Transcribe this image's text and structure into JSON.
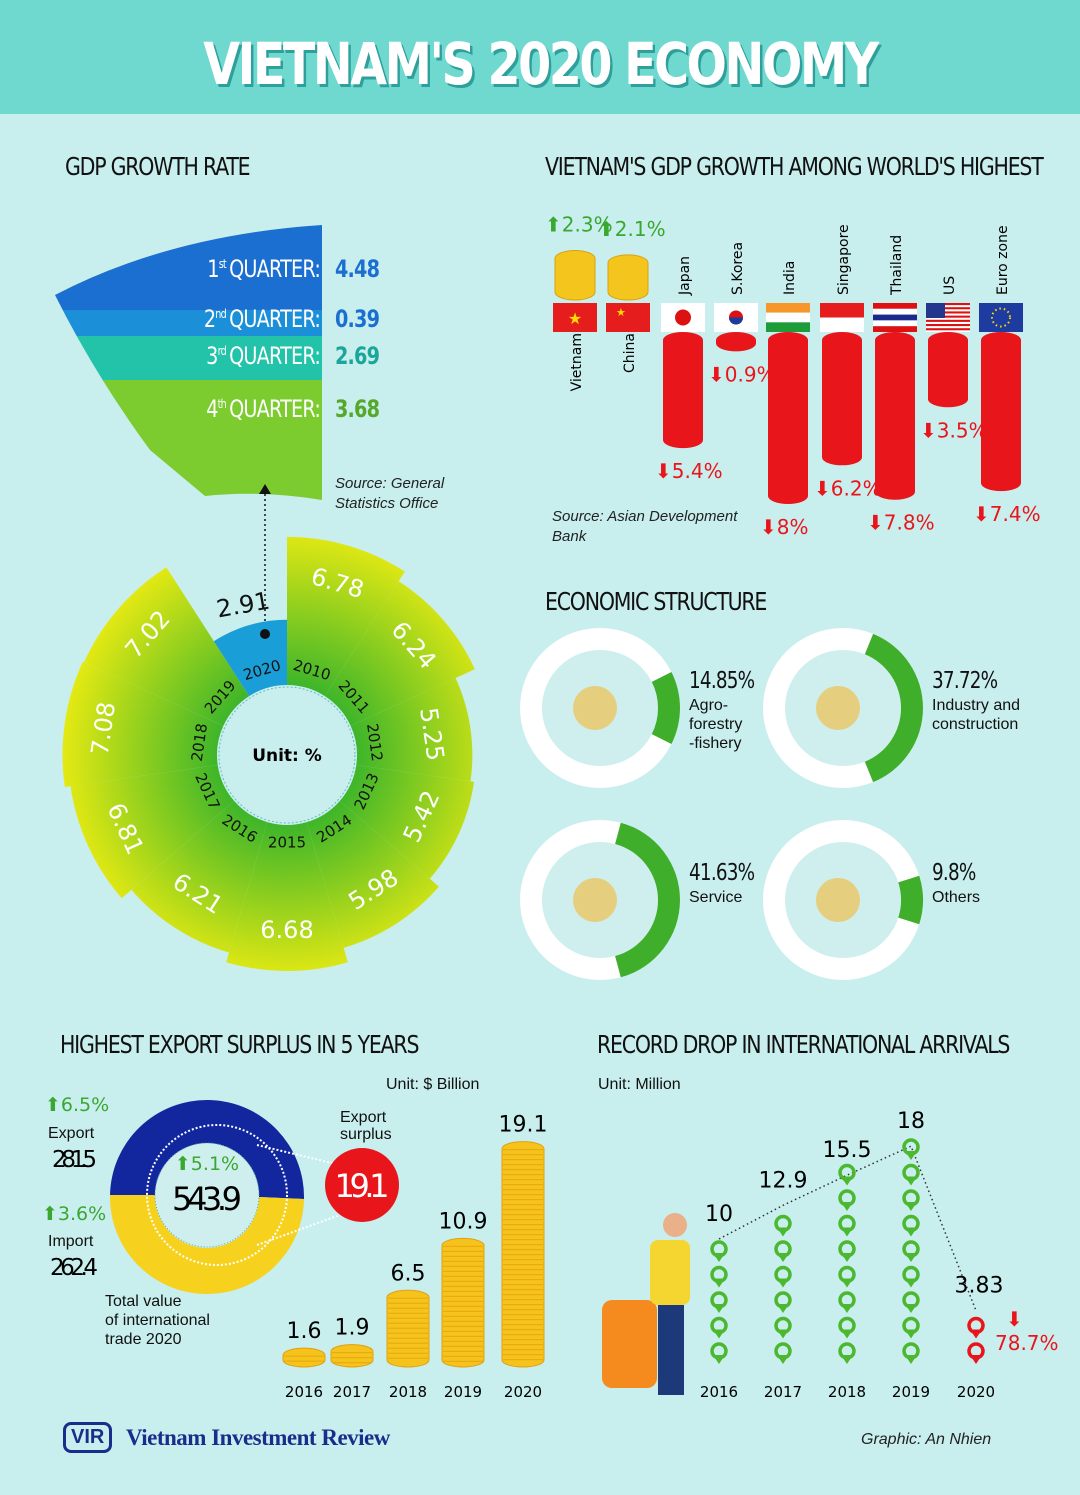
{
  "title": "VIETNAM'S 2020 ECONOMY",
  "gdp_growth": {
    "heading": "GDP GROWTH RATE",
    "quarters": [
      {
        "label": "QUARTER:",
        "ord": "1",
        "sup": "st",
        "value": "4.48",
        "color": "#1b6fd0"
      },
      {
        "label": "QUARTER:",
        "ord": "2",
        "sup": "nd",
        "value": "0.39",
        "color": "#1b8fd8"
      },
      {
        "label": "QUARTER:",
        "ord": "3",
        "sup": "rd",
        "value": "2.69",
        "color": "#22c3a8"
      },
      {
        "label": "QUARTER:",
        "ord": "4",
        "sup": "th",
        "value": "3.68",
        "color": "#7ccc30"
      }
    ],
    "source": "Source: General Statistics Office",
    "center_label": "Unit: %"
  },
  "chart_data": [
    {
      "type": "radial-bar",
      "title": "GDP GROWTH RATE",
      "unit": "%",
      "categories": [
        "2010",
        "2011",
        "2012",
        "2013",
        "2014",
        "2015",
        "2016",
        "2017",
        "2018",
        "2019",
        "2020"
      ],
      "values": [
        6.78,
        6.24,
        5.25,
        5.42,
        5.98,
        6.68,
        6.21,
        6.81,
        7.08,
        7.02,
        2.91
      ],
      "highlight": "2020",
      "colors": {
        "normal": "#b8dc1a",
        "highlight": "#1a9ed8"
      }
    },
    {
      "type": "bar",
      "title": "VIETNAM'S GDP GROWTH AMONG WORLD'S HIGHEST",
      "categories": [
        "Vietnam",
        "China",
        "Japan",
        "S.Korea",
        "India",
        "Singapore",
        "Thailand",
        "US",
        "Euro zone"
      ],
      "values": [
        2.3,
        2.1,
        -5.4,
        -0.9,
        -8,
        -6.2,
        -7.8,
        -3.5,
        -7.4
      ],
      "labels": [
        "2.3%",
        "2.1%",
        "5.4%",
        "0.9%",
        "8%",
        "6.2%",
        "7.8%",
        "3.5%",
        "7.4%"
      ],
      "source": "Source: Asian Development Bank",
      "colors": {
        "up": "#3aa830",
        "down": "#e8161b",
        "coin": "#f4c51c"
      }
    },
    {
      "type": "pie",
      "title": "ECONOMIC STRUCTURE",
      "categories": [
        "Agro-forestry-fishery",
        "Industry and construction",
        "Service",
        "Others"
      ],
      "values": [
        14.85,
        37.72,
        41.63,
        9.8
      ],
      "labels": [
        "14.85%",
        "37.72%",
        "41.63%",
        "9.8%"
      ],
      "names": [
        "Agro-\nforestry\n-fishery",
        "Industry and\nconstruction",
        "Service",
        "Others"
      ],
      "color": "#3fae2a"
    },
    {
      "type": "bar",
      "title": "HIGHEST EXPORT SURPLUS IN 5 YEARS",
      "unit": "Unit: $ Billion",
      "categories": [
        "2016",
        "2017",
        "2018",
        "2019",
        "2020"
      ],
      "values": [
        1.6,
        1.9,
        6.5,
        10.9,
        19.1
      ],
      "labels": [
        "1.6",
        "1.9",
        "6.5",
        "10.9",
        "19.1"
      ]
    },
    {
      "type": "line",
      "title": "RECORD DROP IN INTERNATIONAL ARRIVALS",
      "unit": "Unit: Million",
      "categories": [
        "2016",
        "2017",
        "2018",
        "2019",
        "2020"
      ],
      "values": [
        10,
        12.9,
        15.5,
        18,
        3.83
      ],
      "labels": [
        "10",
        "12.9",
        "15.5",
        "18",
        "3.83"
      ],
      "drop": "78.7%",
      "colors": {
        "pin": "#4cb830",
        "drop": "#e8161b"
      }
    }
  ],
  "trade": {
    "export_label": "Export",
    "export_value": "281.5",
    "export_growth": "6.5%",
    "import_label": "Import",
    "import_value": "262.4",
    "import_growth": "3.6%",
    "total_value": "543.9",
    "total_growth": "5.1%",
    "total_caption": "Total value\nof international\ntrade 2020",
    "surplus_label": "Export\nsurplus",
    "surplus_value": "19.1",
    "colors": {
      "export": "#12279e",
      "import": "#f6d21e",
      "surplus": "#e8161b"
    }
  },
  "footer": {
    "logo": "VIR",
    "brand": "Vietnam Investment Review",
    "credit": "Graphic: An Nhien"
  }
}
